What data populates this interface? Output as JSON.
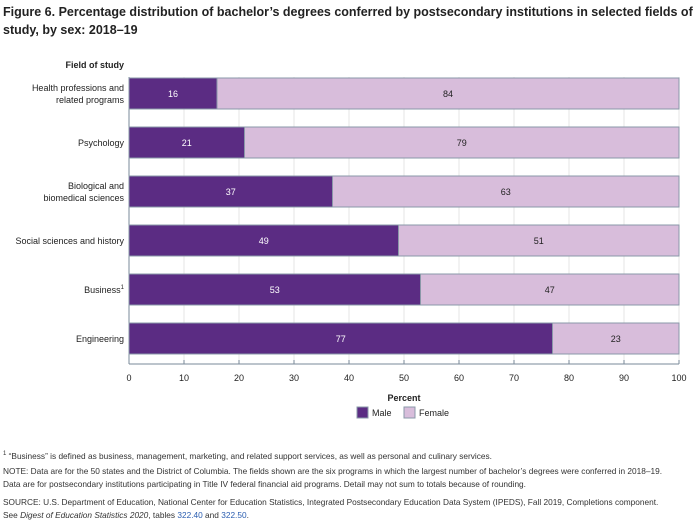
{
  "chart_data": {
    "type": "bar",
    "orientation": "horizontal",
    "stacked": true,
    "title": "Figure 6. Percentage distribution of bachelor’s degrees conferred by postsecondary institutions in selected fields of study, by sex: 2018–19",
    "ylabel": "Field of study",
    "xlabel": "Percent",
    "xlim": [
      0,
      100
    ],
    "xticks": [
      0,
      10,
      20,
      30,
      40,
      50,
      60,
      70,
      80,
      90,
      100
    ],
    "categories": [
      [
        "Health professions and",
        "related programs"
      ],
      [
        "Psychology"
      ],
      [
        "Biological and",
        "biomedical sciences"
      ],
      [
        "Social sciences and history"
      ],
      [
        "Business"
      ],
      [
        "Engineering"
      ]
    ],
    "category_superscripts": [
      "",
      "",
      "",
      "",
      "1",
      ""
    ],
    "series": [
      {
        "name": "Male",
        "color": "#5b2c83",
        "values": [
          16,
          21,
          37,
          49,
          53,
          77
        ]
      },
      {
        "name": "Female",
        "color": "#d8bddb",
        "values": [
          84,
          79,
          63,
          51,
          47,
          23
        ]
      }
    ],
    "legend": "bottom-center",
    "grid": true
  },
  "notes": {
    "footnote_mark": "1",
    "footnote": " “Business” is defined as business, management, marketing, and related support services, as well as personal and culinary services.",
    "note_line1": "NOTE: Data are for the 50 states and the District of Columbia. The fields shown are the six programs in which the largest number of bachelor’s degrees were conferred in 2018–19.",
    "note_line2": "Data are for postsecondary institutions participating in Title IV federal financial aid programs. Detail may not sum to totals because of rounding.",
    "source_line1": "SOURCE: U.S. Department of Education, National Center for Education Statistics, Integrated Postsecondary Education Data System (IPEDS), Fall 2019, Completions component.",
    "source_see": "See ",
    "source_digest": "Digest of Education Statistics 2020",
    "source_tables": ", tables ",
    "link1": "322.40",
    "source_and": " and ",
    "link2": "322.50",
    "source_end": "."
  }
}
